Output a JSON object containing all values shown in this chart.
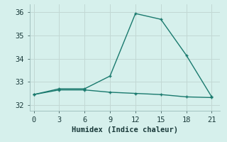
{
  "title": "",
  "xlabel": "Humidex (Indice chaleur)",
  "background_color": "#d6f0ec",
  "grid_color": "#c2d8d4",
  "line_color": "#1a7a6e",
  "x_line1": [
    0,
    3,
    6,
    9,
    12,
    15,
    18,
    21
  ],
  "y_line1": [
    32.45,
    32.7,
    32.7,
    33.25,
    35.95,
    35.7,
    34.15,
    32.35
  ],
  "x_line2": [
    0,
    3,
    6,
    9,
    12,
    15,
    18,
    21
  ],
  "y_line2": [
    32.45,
    32.65,
    32.65,
    32.55,
    32.5,
    32.45,
    32.35,
    32.32
  ],
  "xlim": [
    -0.5,
    22
  ],
  "ylim": [
    31.75,
    36.35
  ],
  "yticks": [
    32,
    33,
    34,
    35,
    36
  ],
  "xticks": [
    0,
    3,
    6,
    9,
    12,
    15,
    18,
    21
  ],
  "markersize": 3.0,
  "linewidth": 1.0,
  "tick_fontsize": 7.5,
  "xlabel_fontsize": 7.5
}
